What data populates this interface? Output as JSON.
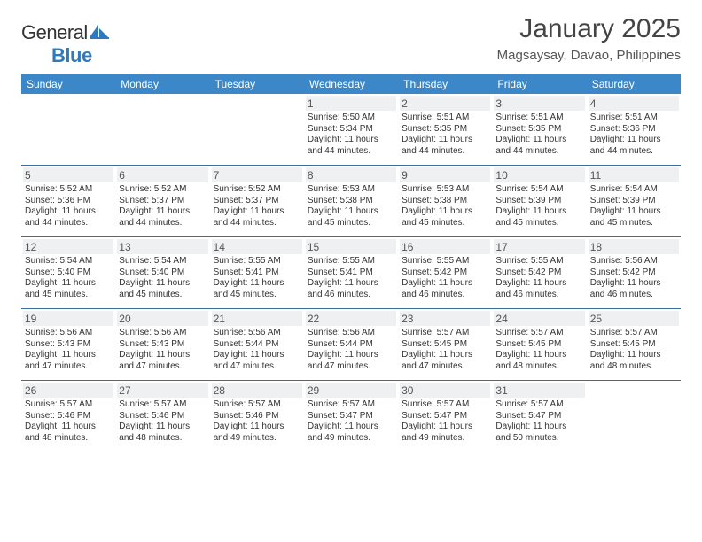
{
  "brand": {
    "part1": "General",
    "part2": "Blue"
  },
  "title": "January 2025",
  "subtitle": "Magsaysay, Davao, Philippines",
  "colors": {
    "header_row_bg": "#3b87c8",
    "header_row_text": "#ffffff",
    "day_num_bg": "#eef0f2",
    "row_divider": "#3b6ea0",
    "logo_blue": "#2f79bd",
    "body_text": "#333333",
    "title_text": "#444444",
    "subtitle_text": "#555555",
    "page_bg": "#ffffff"
  },
  "typography": {
    "title_fontsize": 30,
    "subtitle_fontsize": 15,
    "dow_fontsize": 12,
    "daynum_fontsize": 12,
    "daytext_fontsize": 10
  },
  "days_of_week": [
    "Sunday",
    "Monday",
    "Tuesday",
    "Wednesday",
    "Thursday",
    "Friday",
    "Saturday"
  ],
  "weeks": [
    [
      {
        "num": "",
        "text": ""
      },
      {
        "num": "",
        "text": ""
      },
      {
        "num": "",
        "text": ""
      },
      {
        "num": "1",
        "text": "Sunrise: 5:50 AM\nSunset: 5:34 PM\nDaylight: 11 hours\nand 44 minutes."
      },
      {
        "num": "2",
        "text": "Sunrise: 5:51 AM\nSunset: 5:35 PM\nDaylight: 11 hours\nand 44 minutes."
      },
      {
        "num": "3",
        "text": "Sunrise: 5:51 AM\nSunset: 5:35 PM\nDaylight: 11 hours\nand 44 minutes."
      },
      {
        "num": "4",
        "text": "Sunrise: 5:51 AM\nSunset: 5:36 PM\nDaylight: 11 hours\nand 44 minutes."
      }
    ],
    [
      {
        "num": "5",
        "text": "Sunrise: 5:52 AM\nSunset: 5:36 PM\nDaylight: 11 hours\nand 44 minutes."
      },
      {
        "num": "6",
        "text": "Sunrise: 5:52 AM\nSunset: 5:37 PM\nDaylight: 11 hours\nand 44 minutes."
      },
      {
        "num": "7",
        "text": "Sunrise: 5:52 AM\nSunset: 5:37 PM\nDaylight: 11 hours\nand 44 minutes."
      },
      {
        "num": "8",
        "text": "Sunrise: 5:53 AM\nSunset: 5:38 PM\nDaylight: 11 hours\nand 45 minutes."
      },
      {
        "num": "9",
        "text": "Sunrise: 5:53 AM\nSunset: 5:38 PM\nDaylight: 11 hours\nand 45 minutes."
      },
      {
        "num": "10",
        "text": "Sunrise: 5:54 AM\nSunset: 5:39 PM\nDaylight: 11 hours\nand 45 minutes."
      },
      {
        "num": "11",
        "text": "Sunrise: 5:54 AM\nSunset: 5:39 PM\nDaylight: 11 hours\nand 45 minutes."
      }
    ],
    [
      {
        "num": "12",
        "text": "Sunrise: 5:54 AM\nSunset: 5:40 PM\nDaylight: 11 hours\nand 45 minutes."
      },
      {
        "num": "13",
        "text": "Sunrise: 5:54 AM\nSunset: 5:40 PM\nDaylight: 11 hours\nand 45 minutes."
      },
      {
        "num": "14",
        "text": "Sunrise: 5:55 AM\nSunset: 5:41 PM\nDaylight: 11 hours\nand 45 minutes."
      },
      {
        "num": "15",
        "text": "Sunrise: 5:55 AM\nSunset: 5:41 PM\nDaylight: 11 hours\nand 46 minutes."
      },
      {
        "num": "16",
        "text": "Sunrise: 5:55 AM\nSunset: 5:42 PM\nDaylight: 11 hours\nand 46 minutes."
      },
      {
        "num": "17",
        "text": "Sunrise: 5:55 AM\nSunset: 5:42 PM\nDaylight: 11 hours\nand 46 minutes."
      },
      {
        "num": "18",
        "text": "Sunrise: 5:56 AM\nSunset: 5:42 PM\nDaylight: 11 hours\nand 46 minutes."
      }
    ],
    [
      {
        "num": "19",
        "text": "Sunrise: 5:56 AM\nSunset: 5:43 PM\nDaylight: 11 hours\nand 47 minutes."
      },
      {
        "num": "20",
        "text": "Sunrise: 5:56 AM\nSunset: 5:43 PM\nDaylight: 11 hours\nand 47 minutes."
      },
      {
        "num": "21",
        "text": "Sunrise: 5:56 AM\nSunset: 5:44 PM\nDaylight: 11 hours\nand 47 minutes."
      },
      {
        "num": "22",
        "text": "Sunrise: 5:56 AM\nSunset: 5:44 PM\nDaylight: 11 hours\nand 47 minutes."
      },
      {
        "num": "23",
        "text": "Sunrise: 5:57 AM\nSunset: 5:45 PM\nDaylight: 11 hours\nand 47 minutes."
      },
      {
        "num": "24",
        "text": "Sunrise: 5:57 AM\nSunset: 5:45 PM\nDaylight: 11 hours\nand 48 minutes."
      },
      {
        "num": "25",
        "text": "Sunrise: 5:57 AM\nSunset: 5:45 PM\nDaylight: 11 hours\nand 48 minutes."
      }
    ],
    [
      {
        "num": "26",
        "text": "Sunrise: 5:57 AM\nSunset: 5:46 PM\nDaylight: 11 hours\nand 48 minutes."
      },
      {
        "num": "27",
        "text": "Sunrise: 5:57 AM\nSunset: 5:46 PM\nDaylight: 11 hours\nand 48 minutes."
      },
      {
        "num": "28",
        "text": "Sunrise: 5:57 AM\nSunset: 5:46 PM\nDaylight: 11 hours\nand 49 minutes."
      },
      {
        "num": "29",
        "text": "Sunrise: 5:57 AM\nSunset: 5:47 PM\nDaylight: 11 hours\nand 49 minutes."
      },
      {
        "num": "30",
        "text": "Sunrise: 5:57 AM\nSunset: 5:47 PM\nDaylight: 11 hours\nand 49 minutes."
      },
      {
        "num": "31",
        "text": "Sunrise: 5:57 AM\nSunset: 5:47 PM\nDaylight: 11 hours\nand 50 minutes."
      },
      {
        "num": "",
        "text": ""
      }
    ]
  ]
}
